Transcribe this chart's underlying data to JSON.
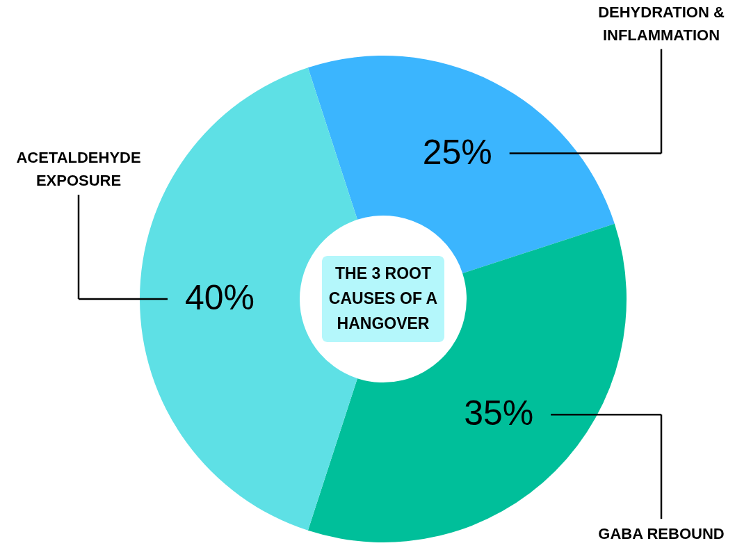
{
  "chart_data": {
    "type": "donut",
    "title": "THE 3 ROOT CAUSES OF A HANGOVER",
    "categories": [
      "DEHYDRATION & INFLAMMATION",
      "GABA REBOUND",
      "ACETALDEHYDE EXPOSURE"
    ],
    "values": [
      25,
      35,
      40
    ],
    "colors": [
      "#3bb5fe",
      "#00bf9a",
      "#5ee0e5"
    ],
    "value_labels": [
      "25%",
      "35%",
      "40%"
    ]
  }
}
